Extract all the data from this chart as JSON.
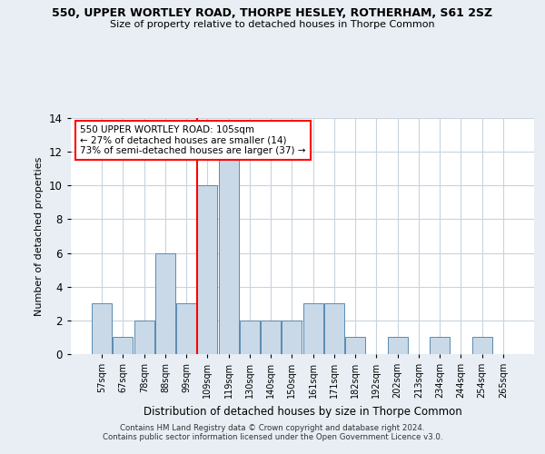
{
  "title_line1": "550, UPPER WORTLEY ROAD, THORPE HESLEY, ROTHERHAM, S61 2SZ",
  "title_line2": "Size of property relative to detached houses in Thorpe Common",
  "xlabel": "Distribution of detached houses by size in Thorpe Common",
  "ylabel": "Number of detached properties",
  "footer_line1": "Contains HM Land Registry data © Crown copyright and database right 2024.",
  "footer_line2": "Contains public sector information licensed under the Open Government Licence v3.0.",
  "bin_labels": [
    "57sqm",
    "67sqm",
    "78sqm",
    "88sqm",
    "99sqm",
    "109sqm",
    "119sqm",
    "130sqm",
    "140sqm",
    "150sqm",
    "161sqm",
    "171sqm",
    "182sqm",
    "192sqm",
    "202sqm",
    "213sqm",
    "234sqm",
    "244sqm",
    "254sqm",
    "265sqm"
  ],
  "bar_values": [
    3,
    1,
    2,
    6,
    3,
    10,
    12,
    2,
    2,
    2,
    3,
    3,
    1,
    0,
    1,
    0,
    1,
    0,
    1,
    0
  ],
  "bar_color": "#c9d9e8",
  "bar_edge_color": "#5a8ab0",
  "vline_x": 4.5,
  "vline_color": "red",
  "annotation_text": "550 UPPER WORTLEY ROAD: 105sqm\n← 27% of detached houses are smaller (14)\n73% of semi-detached houses are larger (37) →",
  "annotation_box_color": "white",
  "annotation_box_edge": "red",
  "ylim": [
    0,
    14
  ],
  "yticks": [
    0,
    2,
    4,
    6,
    8,
    10,
    12,
    14
  ],
  "bg_color": "#e8eef4",
  "plot_bg_color": "white",
  "grid_color": "#c8d4de"
}
